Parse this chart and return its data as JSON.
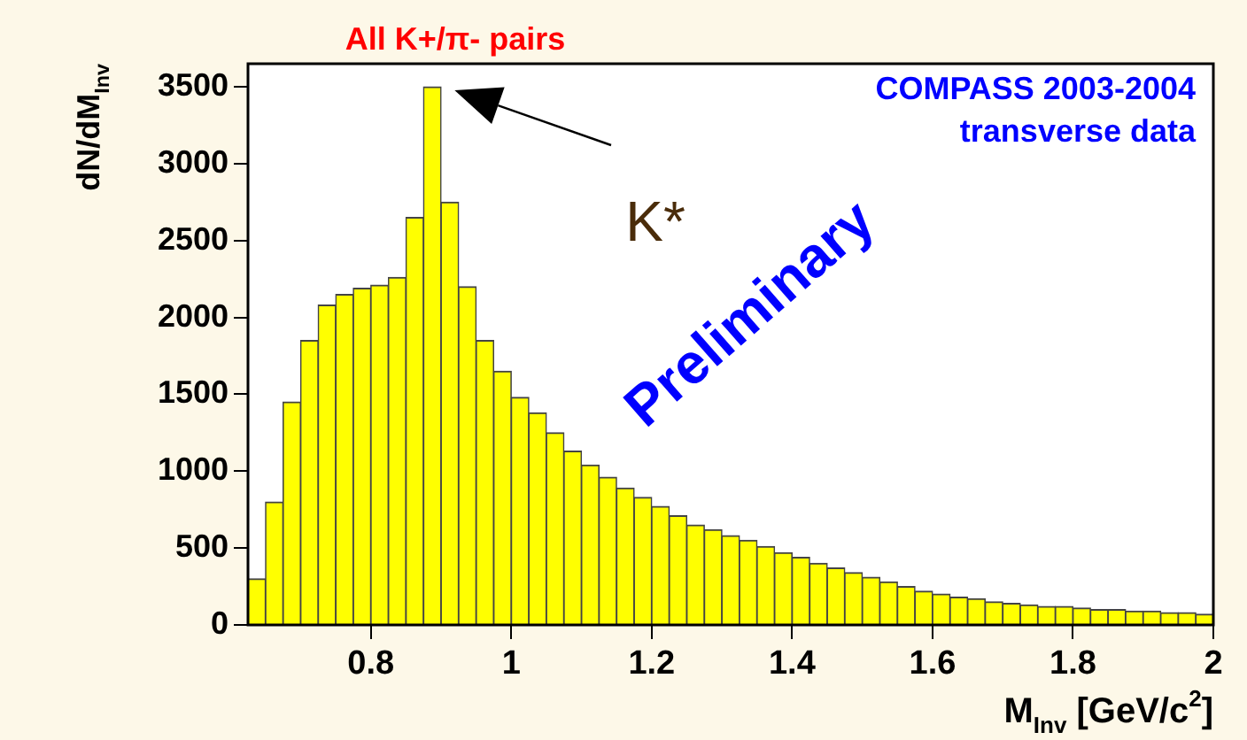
{
  "chart_data": {
    "type": "histogram",
    "xlabel": "M$_{Inv}$ [GeV/c$^{2}$]",
    "ylabel": "dN/dM$_{Inv}$",
    "color": "#ffff00",
    "bins": [
      0.625,
      0.65,
      0.675,
      0.7,
      0.725,
      0.75,
      0.775,
      0.8,
      0.825,
      0.85,
      0.875,
      0.9,
      0.925,
      0.95,
      0.975,
      1.0,
      1.025,
      1.05,
      1.075,
      1.1,
      1.125,
      1.15,
      1.175,
      1.2,
      1.225,
      1.25,
      1.275,
      1.3,
      1.325,
      1.35,
      1.375,
      1.4,
      1.425,
      1.45,
      1.475,
      1.5,
      1.525,
      1.55,
      1.575,
      1.6,
      1.625,
      1.65,
      1.675,
      1.7,
      1.725,
      1.75,
      1.775,
      1.8,
      1.825,
      1.85,
      1.875,
      1.9,
      1.925,
      1.95,
      1.975,
      2.0
    ],
    "values": [
      300,
      800,
      1450,
      1850,
      2080,
      2150,
      2190,
      2210,
      2260,
      2650,
      3500,
      2750,
      2200,
      1850,
      1650,
      1480,
      1380,
      1250,
      1130,
      1040,
      960,
      890,
      830,
      770,
      710,
      650,
      620,
      580,
      550,
      510,
      470,
      440,
      400,
      370,
      340,
      310,
      280,
      250,
      220,
      200,
      180,
      170,
      150,
      140,
      130,
      120,
      120,
      110,
      100,
      100,
      90,
      90,
      80,
      80,
      70
    ],
    "xlim": [
      0.625,
      2
    ],
    "xticks": [
      0.8,
      1,
      1.2,
      1.4,
      1.6,
      1.8,
      2
    ],
    "ylim": [
      0,
      3650
    ],
    "yticks": [
      0,
      500,
      1000,
      1500,
      2000,
      2500,
      3000,
      3500
    ],
    "grid": false,
    "legend": false,
    "annotations": [
      "All K+/π- pairs",
      "COMPASS 2003-2004",
      "transverse data",
      "K*",
      "Preliminary"
    ]
  }
}
